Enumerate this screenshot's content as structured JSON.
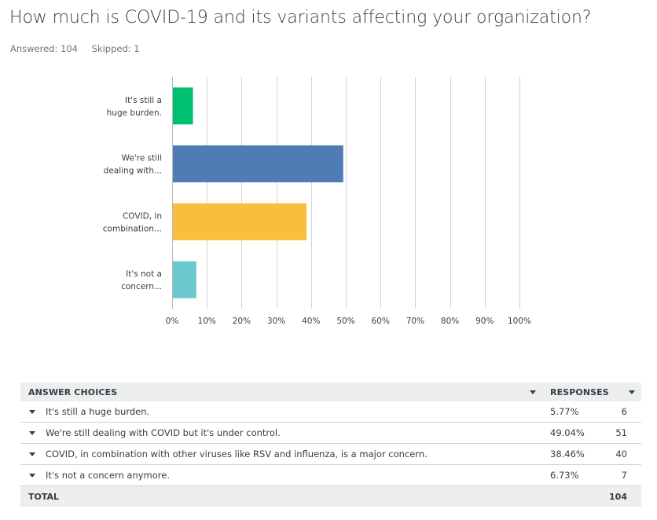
{
  "question": {
    "title": "How much is COVID-19 and its variants affecting your organization?",
    "answered": "Answered: 104",
    "skipped": "Skipped: 1"
  },
  "colors": {
    "bar_1": "#00bf6f",
    "bar_2": "#507cb6",
    "bar_3": "#f9be3e",
    "bar_4": "#6bc8cd",
    "grid": "#d0d2d3",
    "text": "#333e48"
  },
  "chart_data": {
    "type": "bar",
    "orientation": "horizontal",
    "categories": [
      [
        "It's still a",
        "huge burden."
      ],
      [
        "We're still",
        "dealing with..."
      ],
      [
        "COVID, in",
        "combination..."
      ],
      [
        "It's not a",
        "concern..."
      ]
    ],
    "values": [
      5.77,
      49.04,
      38.46,
      6.73
    ],
    "xlim": [
      0,
      100
    ],
    "xticks": [
      "0%",
      "10%",
      "20%",
      "30%",
      "40%",
      "50%",
      "60%",
      "70%",
      "80%",
      "90%",
      "100%"
    ],
    "grid": true
  },
  "table": {
    "header_choices": "ANSWER CHOICES",
    "header_responses": "RESPONSES",
    "rows": [
      {
        "choice": "It's still a huge burden.",
        "percent": "5.77%",
        "count": "6"
      },
      {
        "choice": "We're still dealing with COVID but it's under control.",
        "percent": "49.04%",
        "count": "51"
      },
      {
        "choice": "COVID, in combination with other viruses like RSV and influenza, is a major concern.",
        "percent": "38.46%",
        "count": "40"
      },
      {
        "choice": "It's not a concern anymore.",
        "percent": "6.73%",
        "count": "7"
      }
    ],
    "total_label": "TOTAL",
    "total_count": "104"
  }
}
